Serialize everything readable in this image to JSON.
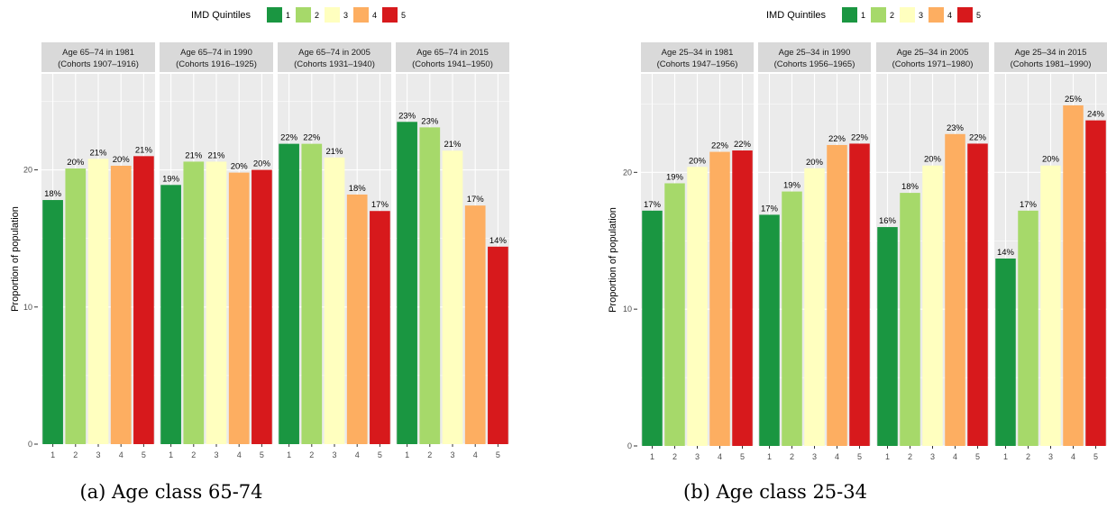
{
  "colors": {
    "q1": "#1a9641",
    "q2": "#a6d96a",
    "q3": "#ffffbf",
    "q4": "#fdae61",
    "q5": "#d7191c",
    "panel_bg": "#ebebeb",
    "strip_bg": "#d9d9d9",
    "grid": "#ffffff"
  },
  "chart_data": [
    {
      "type": "bar",
      "caption": "(a) Age class 65-74",
      "legend": {
        "title": "IMD Quintiles",
        "labels": [
          "1",
          "2",
          "3",
          "4",
          "5"
        ],
        "position": "top"
      },
      "ylabel": "Proportion of population",
      "ylim": [
        0,
        27
      ],
      "yticks": [
        "0",
        "10",
        "20"
      ],
      "categories": [
        "1",
        "2",
        "3",
        "4",
        "5"
      ],
      "grid": true,
      "panels": [
        {
          "title_line1": "Age 65–74 in 1981",
          "title_line2": "(Cohorts 1907–1916)",
          "values": [
            17.8,
            20.1,
            20.8,
            20.3,
            21.0
          ],
          "labels": [
            "18%",
            "20%",
            "21%",
            "20%",
            "21%"
          ]
        },
        {
          "title_line1": "Age 65–74 in 1990",
          "title_line2": "(Cohorts 1916–1925)",
          "values": [
            18.9,
            20.6,
            20.6,
            19.8,
            20.0
          ],
          "labels": [
            "19%",
            "21%",
            "21%",
            "20%",
            "20%"
          ]
        },
        {
          "title_line1": "Age 65–74 in 2005",
          "title_line2": "(Cohorts 1931–1940)",
          "values": [
            21.9,
            21.9,
            20.9,
            18.2,
            17.0
          ],
          "labels": [
            "22%",
            "22%",
            "21%",
            "18%",
            "17%"
          ]
        },
        {
          "title_line1": "Age 65–74 in 2015",
          "title_line2": "(Cohorts 1941–1950)",
          "values": [
            23.5,
            23.1,
            21.4,
            17.4,
            14.4
          ],
          "labels": [
            "23%",
            "23%",
            "21%",
            "17%",
            "14%"
          ]
        }
      ]
    },
    {
      "type": "bar",
      "caption": "(b) Age class 25-34",
      "legend": {
        "title": "IMD Quintiles",
        "labels": [
          "1",
          "2",
          "3",
          "4",
          "5"
        ],
        "position": "top"
      },
      "ylabel": "Proportion of population",
      "ylim": [
        0,
        27.2
      ],
      "yticks": [
        "0",
        "10",
        "20"
      ],
      "categories": [
        "1",
        "2",
        "3",
        "4",
        "5"
      ],
      "grid": true,
      "panels": [
        {
          "title_line1": "Age 25–34 in 1981",
          "title_line2": "(Cohorts 1947–1956)",
          "values": [
            17.2,
            19.2,
            20.4,
            21.5,
            21.6
          ],
          "labels": [
            "17%",
            "19%",
            "20%",
            "22%",
            "22%"
          ]
        },
        {
          "title_line1": "Age 25–34 in 1990",
          "title_line2": "(Cohorts 1956–1965)",
          "values": [
            16.9,
            18.6,
            20.3,
            22.0,
            22.1
          ],
          "labels": [
            "17%",
            "19%",
            "20%",
            "22%",
            "22%"
          ]
        },
        {
          "title_line1": "Age 25–34 in 2005",
          "title_line2": "(Cohorts 1971–1980)",
          "values": [
            16.0,
            18.5,
            20.5,
            22.8,
            22.1
          ],
          "labels": [
            "16%",
            "18%",
            "20%",
            "23%",
            "22%"
          ]
        },
        {
          "title_line1": "Age 25–34 in 2015",
          "title_line2": "(Cohorts 1981–1990)",
          "values": [
            13.7,
            17.2,
            20.5,
            24.9,
            23.8
          ],
          "labels": [
            "14%",
            "17%",
            "20%",
            "25%",
            "24%"
          ]
        }
      ]
    }
  ]
}
